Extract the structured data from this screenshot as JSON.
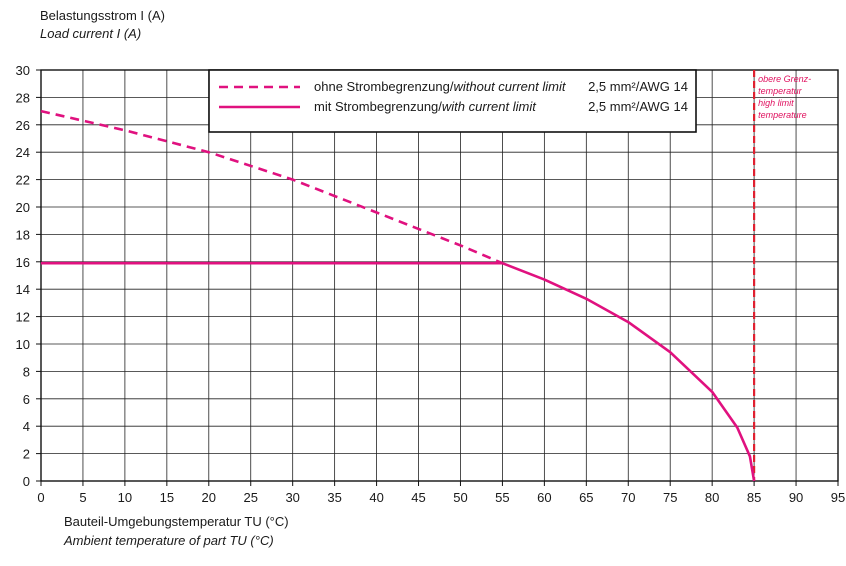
{
  "chart_data": {
    "type": "line",
    "y_label_de": "Belastungsstrom I (A)",
    "y_label_en": "Load current I (A)",
    "x_label_de": "Bauteil-Umgebungstemperatur TU (°C)",
    "x_label_en": "Ambient temperature of part TU (°C)",
    "xlim": [
      0,
      95
    ],
    "ylim": [
      0,
      30
    ],
    "x_ticks": [
      "0",
      "5",
      "10",
      "15",
      "20",
      "25",
      "30",
      "35",
      "40",
      "45",
      "50",
      "55",
      "60",
      "65",
      "70",
      "75",
      "80",
      "85",
      "90",
      "95"
    ],
    "y_ticks": [
      "0",
      "2",
      "4",
      "6",
      "8",
      "10",
      "12",
      "14",
      "16",
      "18",
      "20",
      "22",
      "24",
      "26",
      "28",
      "30"
    ],
    "grid": true,
    "series": [
      {
        "name_de": "ohne Strombegrenzung/",
        "name_en": "without current limit",
        "spec": "2,5 mm²/AWG 14",
        "style": "dashed",
        "color": "#e0117f",
        "x": [
          0,
          10,
          20,
          30,
          40,
          50,
          55
        ],
        "y": [
          27,
          25.6,
          24.0,
          22.0,
          19.6,
          17.2,
          15.9
        ]
      },
      {
        "name_de": "mit Strombegrenzung/",
        "name_en": "with current limit",
        "spec": "2,5 mm²/AWG 14",
        "style": "solid",
        "color": "#e0117f",
        "x": [
          0,
          55,
          60,
          65,
          70,
          75,
          80,
          83,
          84.5,
          85
        ],
        "y": [
          15.9,
          15.9,
          14.7,
          13.3,
          11.6,
          9.4,
          6.5,
          3.9,
          1.8,
          0
        ]
      }
    ],
    "limit_line": {
      "x": 85,
      "color": "#e02030",
      "label_de_1": "obere Grenz-",
      "label_de_2": "temperatur",
      "label_en_1": "high limit",
      "label_en_2": "temperature"
    },
    "legend_position": "top-center"
  }
}
